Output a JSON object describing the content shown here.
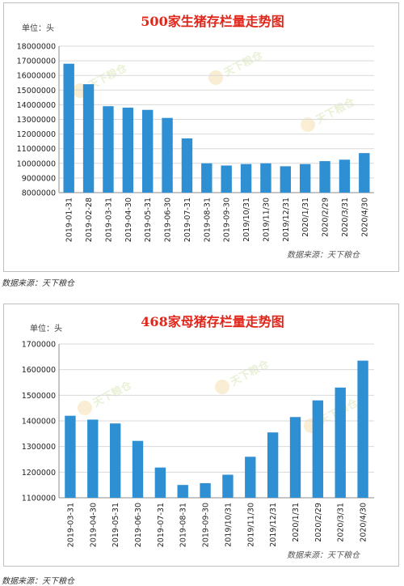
{
  "chart_data": [
    {
      "type": "bar",
      "title": "500家生猪存栏量走势图",
      "unit_label": "单位：头",
      "source_note": "数据来源：天下粮仓",
      "watermark": "天下粮仓",
      "ylim": [
        8000000,
        18000000
      ],
      "yticks": [
        8000000,
        9000000,
        10000000,
        11000000,
        12000000,
        13000000,
        14000000,
        15000000,
        16000000,
        17000000,
        18000000
      ],
      "grid": true,
      "bar_color": "#2f8fd3",
      "categories": [
        "2019-01-31",
        "2019-02-28",
        "2019-03-31",
        "2019-04-30",
        "2019-05-31",
        "2019-06-30",
        "2019-07-31",
        "2019-08-31",
        "2019-09-30",
        "2019/10/31",
        "2019/11/30",
        "2019/12/31",
        "2020/1/31",
        "2020/2/29",
        "2020/3/31",
        "2020/4/30"
      ],
      "values": [
        16800000,
        15400000,
        13900000,
        13800000,
        13650000,
        13100000,
        11700000,
        10000000,
        9850000,
        9950000,
        10000000,
        9800000,
        9950000,
        10150000,
        10250000,
        10700000
      ]
    },
    {
      "type": "bar",
      "title": "468家母猪存栏量走势图",
      "unit_label": "单位：头",
      "source_note": "数据来源：天下粮仓",
      "watermark": "天下粮仓",
      "ylim": [
        1100000,
        1700000
      ],
      "yticks": [
        1100000,
        1200000,
        1300000,
        1400000,
        1500000,
        1600000,
        1700000
      ],
      "grid": true,
      "bar_color": "#2f8fd3",
      "categories": [
        "2019-03-31",
        "2019-04-30",
        "2019-05-31",
        "2019-06-30",
        "2019-07-31",
        "2019-08-31",
        "2019-09-30",
        "2019/10/31",
        "2019/11/30",
        "2019/12/31",
        "2020/1/31",
        "2020/2/29",
        "2020/3/31",
        "2020/4/30"
      ],
      "values": [
        1420000,
        1405000,
        1390000,
        1322000,
        1218000,
        1150000,
        1157000,
        1190000,
        1260000,
        1355000,
        1415000,
        1480000,
        1530000,
        1635000
      ]
    }
  ],
  "footnotes": [
    "数据来源：天下粮仓",
    "数据来源：天下粮仓"
  ]
}
